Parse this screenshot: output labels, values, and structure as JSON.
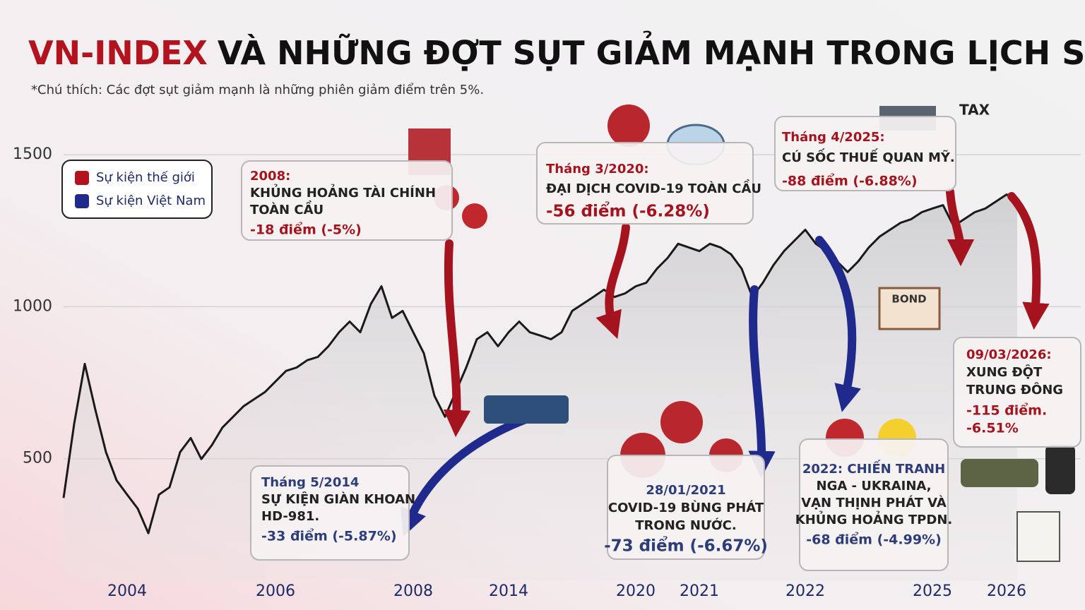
{
  "chart_data": {
    "type": "line",
    "title": [
      "VN-INDEX",
      "VÀ NHỮNG ĐỢT SỤT GIẢM MẠNH TRONG LỊCH SỬ"
    ],
    "subtitle": "*Chú thích: Các đợt sụt giảm mạnh là những phiên giảm điểm trên 5%.",
    "categories": [
      null,
      null,
      null,
      null,
      null,
      null,
      "2004",
      null,
      null,
      null,
      null,
      null,
      null,
      null,
      null,
      null,
      null,
      null,
      null,
      null,
      "2006",
      null,
      null,
      null,
      null,
      null,
      null,
      null,
      null,
      null,
      null,
      null,
      null,
      "2008",
      null,
      null,
      null,
      null,
      null,
      null,
      null,
      null,
      "2014",
      null,
      null,
      null,
      null,
      null,
      null,
      null,
      null,
      null,
      null,
      null,
      "2020",
      null,
      null,
      null,
      null,
      null,
      "2021",
      null,
      null,
      null,
      null,
      null,
      null,
      null,
      null,
      null,
      "2022",
      null,
      null,
      null,
      null,
      null,
      null,
      null,
      null,
      null,
      null,
      null,
      "2025",
      null,
      null,
      null,
      null,
      null,
      null,
      "2026",
      null
    ],
    "series": [
      {
        "name": "VN-Index",
        "color": "#1a1a1a",
        "values": [
          371,
          615,
          812,
          661,
          522,
          429,
          382,
          336,
          255,
          382,
          406,
          522,
          568,
          499,
          545,
          603,
          638,
          673,
          696,
          719,
          754,
          789,
          800,
          824,
          835,
          870,
          916,
          951,
          916,
          1009,
          1067,
          963,
          986,
          916,
          847,
          707,
          638,
          719,
          800,
          893,
          916,
          870,
          916,
          951,
          916,
          905,
          893,
          916,
          986,
          1009,
          1032,
          1056,
          1032,
          1044,
          1067,
          1079,
          1125,
          1160,
          1207,
          1195,
          1183,
          1207,
          1195,
          1172,
          1125,
          1032,
          1079,
          1137,
          1183,
          1218,
          1253,
          1207,
          1183,
          1149,
          1114,
          1149,
          1195,
          1230,
          1253,
          1276,
          1288,
          1311,
          1323,
          1334,
          1265,
          1288,
          1311,
          1323,
          1346,
          1369,
          1358
        ]
      }
    ],
    "ylim": [
      100,
      1600
    ],
    "yticks": [
      500,
      1000,
      1500
    ],
    "grid": true,
    "legend": [
      {
        "label": "Sự kiện thế giới",
        "color": "#b3121f"
      },
      {
        "label": "Sự kiện Việt Nam",
        "color": "#1f2a8c"
      }
    ],
    "annotations": [
      {
        "lines": [
          "2008:",
          "KHỦNG HOẢNG TÀI CHÍNH",
          "TOÀN CẦU"
        ],
        "changes": [
          "-18 điểm (-5%)"
        ],
        "color": "#a5141e"
      },
      {
        "lines": [
          "Tháng 3/2020:",
          "ĐẠI DỊCH COVID-19 TOÀN CẦU"
        ],
        "changes": [
          "-56 điểm (-6.28%)"
        ],
        "color": "#a5141e"
      },
      {
        "lines": [
          "Tháng 4/2025:",
          "CÚ SỐC THUẾ QUAN MỸ."
        ],
        "changes": [
          "-88 điểm (-6.88%)"
        ],
        "color": "#a5141e"
      },
      {
        "lines": [
          "Tháng 5/2014",
          "SỰ KIỆN GIÀN KHOAN",
          "HD-981."
        ],
        "changes": [
          "-33 điểm (-5.87%)"
        ],
        "color": "#2c3d7a"
      },
      {
        "lines": [
          "28/01/2021",
          "COVID-19 BÙNG PHÁT",
          "TRONG NƯỚC."
        ],
        "changes": [
          "-73 điểm (-6.67%)"
        ],
        "color": "#2c3d7a"
      },
      {
        "lines": [
          "2022: CHIẾN TRANH",
          "NGA - UKRAINA,",
          "VẠN THỊNH PHÁT VÀ",
          "KHỦNG HOẢNG TPDN."
        ],
        "changes": [
          "-68 điểm (-4.99%)"
        ],
        "color": "#2c3d7a"
      },
      {
        "lines": [
          "09/03/2026:",
          "XUNG ĐỘT",
          "TRUNG ĐÔNG"
        ],
        "changes": [
          "-115 điểm.",
          "-6.51%"
        ],
        "color": "#a5141e"
      }
    ],
    "icon_labels": [
      "TAX",
      "BOND"
    ]
  }
}
